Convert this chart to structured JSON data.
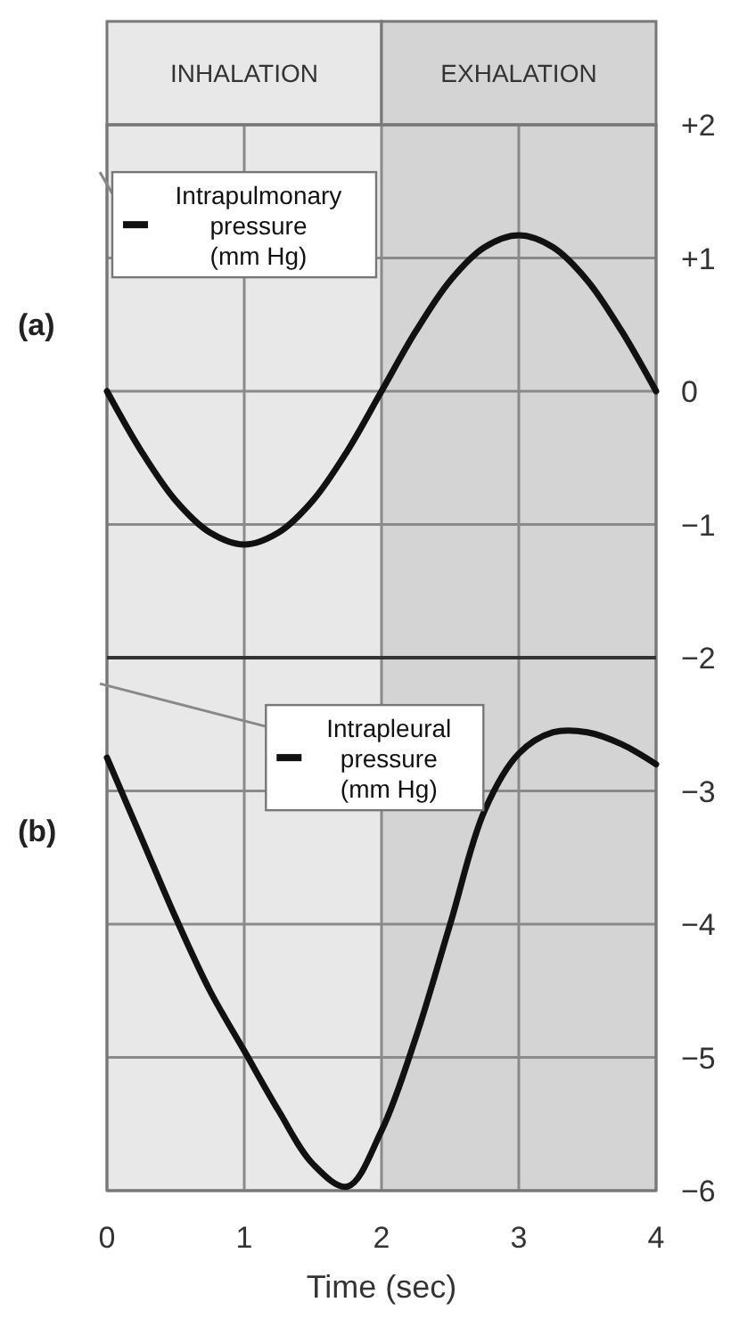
{
  "chart_data": {
    "type": "line",
    "xlabel": "Time (sec)",
    "xlim": [
      0,
      4
    ],
    "xticks": [
      0,
      1,
      2,
      3,
      4
    ],
    "ylim": [
      -6,
      2
    ],
    "yticks": [
      {
        "value": 2,
        "label": "+2"
      },
      {
        "value": 1,
        "label": "+1"
      },
      0,
      {
        "value": -1,
        "label": "−1"
      },
      {
        "value": -2,
        "label": "−2"
      },
      {
        "value": -3,
        "label": "−3"
      },
      {
        "value": -4,
        "label": "−4"
      },
      {
        "value": -5,
        "label": "−5"
      },
      {
        "value": -6,
        "label": "−6"
      }
    ],
    "grid": true,
    "x": [
      0,
      0.25,
      0.5,
      0.75,
      1,
      1.25,
      1.5,
      1.75,
      2,
      2.25,
      2.5,
      2.75,
      3,
      3.25,
      3.5,
      3.75,
      4
    ],
    "series": [
      {
        "name": "Intrapulmonary pressure (mm Hg)",
        "color": "#111111",
        "values": [
          0,
          -0.45,
          -0.82,
          -1.06,
          -1.15,
          -1.06,
          -0.82,
          -0.45,
          0,
          0.45,
          0.83,
          1.08,
          1.17,
          1.08,
          0.83,
          0.45,
          0
        ]
      },
      {
        "name": "Intrapleural pressure (mm Hg)",
        "color": "#111111",
        "values": [
          -2.75,
          -3.35,
          -3.95,
          -4.5,
          -4.95,
          -5.4,
          -5.8,
          -5.97,
          -5.55,
          -4.85,
          -4.0,
          -3.15,
          -2.72,
          -2.56,
          -2.56,
          -2.65,
          -2.8
        ]
      }
    ],
    "bands": [
      {
        "axis": "x",
        "from": 0,
        "to": 2,
        "label": "INHALATION",
        "color": "#e8e8e8"
      },
      {
        "axis": "x",
        "from": 2,
        "to": 4,
        "label": "EXHALATION",
        "color": "#d4d4d4"
      }
    ],
    "ref_lines": [
      {
        "axis": "y",
        "value": -2,
        "color": "#333333"
      }
    ],
    "legend": "top left",
    "annotations": [
      "(a)",
      "(b)"
    ]
  }
}
